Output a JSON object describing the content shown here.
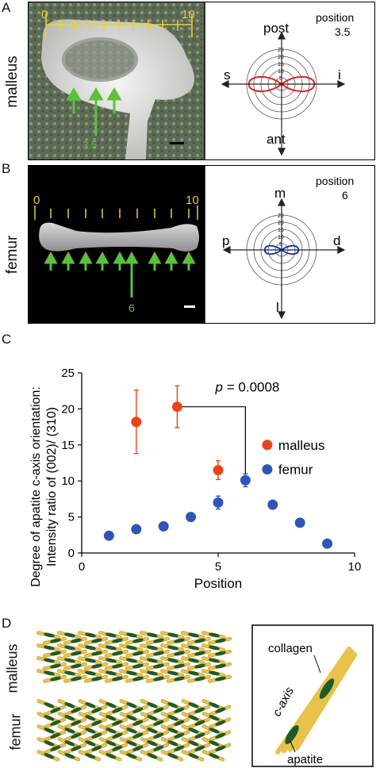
{
  "panel_a": {
    "letter": "A",
    "side_label": "malleus",
    "ruler_start": "0",
    "ruler_end": "10",
    "arrow_label": "3.5",
    "position_title": "position",
    "position_value": "3.5",
    "polar_ticks": [
      "25",
      "20",
      "15",
      "10",
      "5"
    ],
    "dir_top": "post",
    "dir_bottom": "ant",
    "dir_left": "s",
    "dir_right": "i",
    "lobe_color": "#e02020",
    "lobe_axis": "horizontal"
  },
  "panel_b": {
    "letter": "B",
    "side_label": "femur",
    "ruler_start": "0",
    "ruler_end": "10",
    "arrow_label": "6",
    "position_title": "position",
    "position_value": "6",
    "polar_ticks": [
      "25",
      "20",
      "15",
      "10",
      "5"
    ],
    "dir_top": "m",
    "dir_bottom": "l",
    "dir_left": "p",
    "dir_right": "d",
    "lobe_color": "#1a3fa8",
    "lobe_axis": "horizontal"
  },
  "panel_c": {
    "letter": "C",
    "pvalue_prefix": "p",
    "pvalue_text": " = 0.0008",
    "chart_data": {
      "type": "scatter",
      "xlabel": "Position",
      "ylabel_line1": "Degree of apatite c-axis orientation:",
      "ylabel_line2": "Intensity ratio of (002)/ (310)",
      "xlim": [
        0,
        10
      ],
      "ylim": [
        0,
        25
      ],
      "xticks": [
        "0",
        "5",
        "10"
      ],
      "yticks": [
        "0",
        "5",
        "10",
        "15",
        "20",
        "25"
      ],
      "legend_position": "right",
      "series": [
        {
          "name": "malleus",
          "color": "#e8441a",
          "x": [
            2,
            3.5,
            5
          ],
          "y": [
            18.2,
            20.3,
            11.5
          ],
          "err": [
            4.4,
            2.9,
            1.3
          ]
        },
        {
          "name": "femur",
          "color": "#2f55b8",
          "x": [
            1,
            2,
            3,
            4,
            5,
            6,
            7,
            8,
            9
          ],
          "y": [
            2.4,
            3.3,
            3.7,
            5.0,
            7.0,
            10.1,
            6.7,
            4.2,
            1.3
          ],
          "err": [
            0.3,
            0.4,
            0.3,
            0.4,
            0.9,
            0.9,
            0.5,
            0.3,
            0.3
          ]
        }
      ]
    }
  },
  "panel_d": {
    "letter": "D",
    "label_top": "malleus",
    "label_bottom": "femur",
    "inset_collagen": "collagen",
    "inset_caxis": "c-axis",
    "inset_apatite": "apatite",
    "fiber_color": "#e8c24a",
    "apatite_color": "#1f5a2a"
  }
}
